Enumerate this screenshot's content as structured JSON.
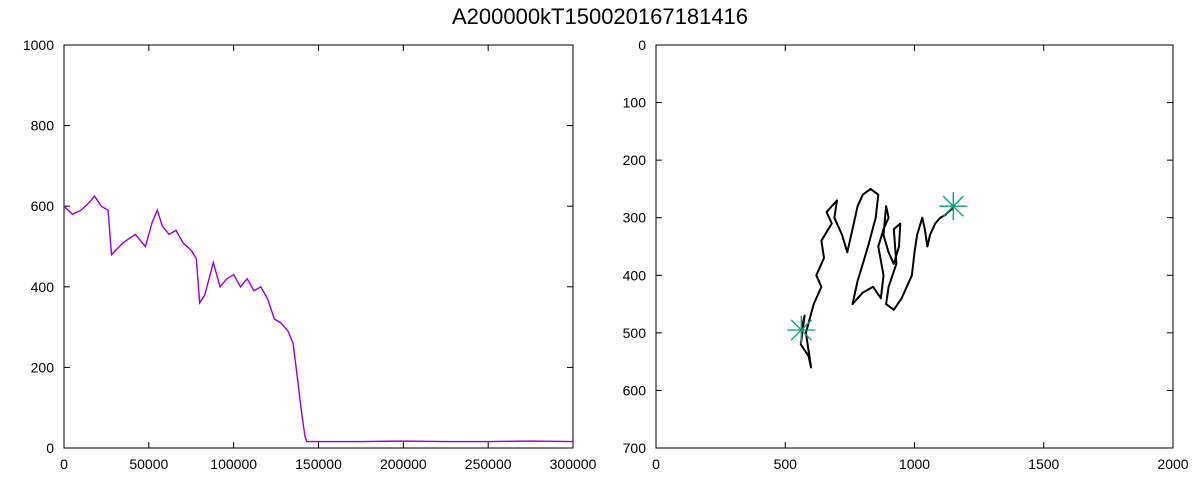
{
  "title": "A200000kT150020167181416",
  "colors": {
    "line": "#9400d3",
    "path": "#000000",
    "marker": "#009e73",
    "axis": "#000000"
  },
  "chart_data": [
    {
      "type": "line",
      "xlim": [
        0,
        300000
      ],
      "ylim": [
        0,
        1000
      ],
      "xticks": [
        0,
        50000,
        100000,
        150000,
        200000,
        250000,
        300000
      ],
      "yticks": [
        0,
        200,
        400,
        600,
        800,
        1000
      ],
      "grid": false,
      "series": [
        {
          "x": [
            0,
            5000,
            10000,
            15000,
            18000,
            22000,
            26000,
            28000,
            35000,
            42000,
            48000,
            52000,
            55000,
            58000,
            62000,
            66000,
            70000,
            75000,
            78000,
            80000,
            83000,
            88000,
            92000,
            96000,
            100000,
            104000,
            108000,
            112000,
            116000,
            120000,
            124000,
            128000,
            132000,
            135000,
            138000,
            140000,
            142000,
            143000,
            150000,
            175000,
            200000,
            225000,
            250000,
            275000,
            300000
          ],
          "y": [
            600,
            580,
            590,
            610,
            625,
            600,
            590,
            480,
            510,
            530,
            500,
            560,
            590,
            550,
            530,
            540,
            510,
            490,
            470,
            360,
            380,
            460,
            400,
            420,
            430,
            400,
            420,
            390,
            400,
            370,
            320,
            310,
            290,
            260,
            160,
            90,
            30,
            16,
            16,
            16,
            17,
            16,
            16,
            17,
            16
          ]
        }
      ]
    },
    {
      "type": "scatter",
      "xlim": [
        0,
        2000
      ],
      "ylim": [
        700,
        0
      ],
      "xticks": [
        0,
        500,
        1000,
        1500,
        2000
      ],
      "yticks": [
        0,
        100,
        200,
        300,
        400,
        500,
        600,
        700
      ],
      "grid": false,
      "path": {
        "x": [
          562,
          575,
          560,
          590,
          600,
          580,
          610,
          640,
          620,
          650,
          640,
          680,
          660,
          700,
          690,
          720,
          740,
          760,
          780,
          800,
          830,
          860,
          850,
          820,
          800,
          780,
          760,
          800,
          840,
          870,
          880,
          860,
          880,
          900,
          890,
          880,
          900,
          920,
          940,
          945,
          920,
          930,
          900,
          890,
          920,
          950,
          960,
          990,
          1000,
          1010,
          1030,
          1040,
          1050,
          1060,
          1080,
          1100,
          1120,
          1130,
          1145,
          1150
        ],
        "y": [
          495,
          470,
          520,
          540,
          560,
          500,
          450,
          420,
          400,
          370,
          340,
          310,
          290,
          270,
          300,
          330,
          360,
          320,
          280,
          260,
          250,
          260,
          300,
          350,
          380,
          410,
          450,
          430,
          420,
          440,
          400,
          350,
          320,
          300,
          280,
          330,
          360,
          380,
          350,
          310,
          320,
          380,
          420,
          450,
          460,
          440,
          430,
          400,
          360,
          330,
          300,
          320,
          350,
          330,
          310,
          300,
          295,
          290,
          285,
          280
        ]
      },
      "markers": [
        {
          "x": 562,
          "y": 495
        },
        {
          "x": 1150,
          "y": 280
        }
      ]
    }
  ]
}
